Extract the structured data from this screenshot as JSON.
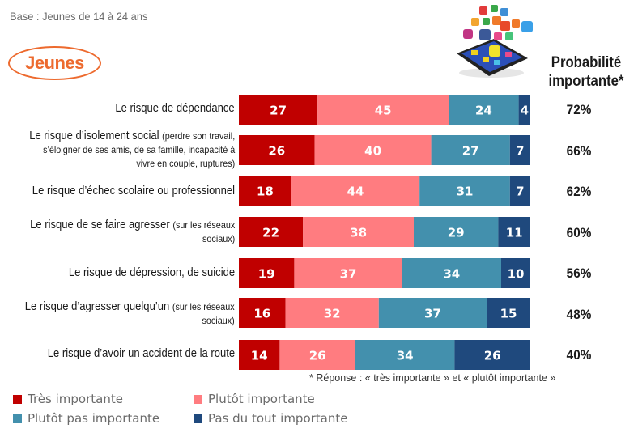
{
  "header": {
    "base_text": "Base : Jeunes de 14 à 24 ans",
    "badge_label": "Jeunes",
    "image_icon": "smartphone-social-apps-icon",
    "prob_title_line1": "Probabilité",
    "prob_title_line2": "importante*"
  },
  "colors": {
    "tres_importante": "#C00000",
    "plutot_importante": "#FF7C80",
    "plutot_pas_importante": "#4390AD",
    "pas_du_tout_importante": "#1F497D",
    "accent": "#ED6A2E"
  },
  "rows": [
    {
      "label_main": "Le risque de dépendance",
      "label_sub": "",
      "label_lines": [
        "Le risque de dépendance"
      ],
      "prob": "72%"
    },
    {
      "label_main": "Le risque d’isolement social",
      "label_sub": "(perdre son travail, s’éloigner de ses amis, de sa famille, incapacité à vivre en couple, ruptures)",
      "prob": "66%"
    },
    {
      "label_main": "Le risque d’échec scolaire ou professionnel",
      "label_sub": "",
      "prob": "62%"
    },
    {
      "label_main": "Le risque de se faire agresser",
      "label_sub": "(sur les réseaux sociaux)",
      "prob": "60%"
    },
    {
      "label_main": "Le risque de dépression, de suicide",
      "label_sub": "",
      "prob": "56%"
    },
    {
      "label_main": "Le risque d’agresser quelqu’un",
      "label_sub": "(sur les réseaux sociaux)",
      "prob": "48%"
    },
    {
      "label_main": "Le risque d’avoir un accident de la route",
      "label_sub": "",
      "prob": "40%"
    }
  ],
  "label_text": {
    "r0_l1": "Le risque de dépendance",
    "r1_l1a": "Le risque d’isolement social ",
    "r1_l1b": "(perdre son travail,",
    "r1_l2": "s’éloigner de ses amis, de sa famille, incapacité à",
    "r1_l3": "vivre en couple, ruptures)",
    "r2_l1": "Le risque d’échec scolaire ou professionnel",
    "r3_l1a": "Le risque de se faire agresser ",
    "r3_l1b": "(sur les réseaux",
    "r3_l2": "sociaux)",
    "r4_l1": "Le risque de dépression, de suicide",
    "r5_l1a": "Le risque d’agresser quelqu’un ",
    "r5_l1b": "(sur les réseaux",
    "r5_l2": "sociaux)",
    "r6_l1": "Le risque d’avoir un accident de la route"
  },
  "footnote": "* Réponse : « très importante » et « plutôt importante »",
  "chart_data": {
    "type": "bar",
    "orientation": "horizontal",
    "stacked": true,
    "title": "",
    "xlabel": "",
    "ylabel": "",
    "xlim": [
      0,
      100
    ],
    "grid": false,
    "legend_position": "bottom-left",
    "categories": [
      "Le risque de dépendance",
      "Le risque d’isolement social (perdre son travail, s’éloigner de ses amis, de sa famille, incapacité à vivre en couple, ruptures)",
      "Le risque d’échec scolaire ou professionnel",
      "Le risque de se faire agresser (sur les réseaux sociaux)",
      "Le risque de dépression, de suicide",
      "Le risque d’agresser quelqu’un (sur les réseaux sociaux)",
      "Le risque d’avoir un accident de la route"
    ],
    "series": [
      {
        "name": "Très importante",
        "color": "#C00000",
        "values": [
          27,
          26,
          18,
          22,
          19,
          16,
          14
        ]
      },
      {
        "name": "Plutôt importante",
        "color": "#FF7C80",
        "values": [
          45,
          40,
          44,
          38,
          37,
          32,
          26
        ]
      },
      {
        "name": "Plutôt pas importante",
        "color": "#4390AD",
        "values": [
          24,
          27,
          31,
          29,
          34,
          37,
          34
        ]
      },
      {
        "name": "Pas du tout importante",
        "color": "#1F497D",
        "values": [
          4,
          7,
          7,
          11,
          10,
          15,
          26
        ]
      }
    ],
    "side_column": {
      "title": "Probabilité importante*",
      "values": [
        "72%",
        "66%",
        "62%",
        "60%",
        "56%",
        "48%",
        "40%"
      ]
    },
    "footnote": "* Réponse : « très importante » et « plutôt importante »"
  }
}
